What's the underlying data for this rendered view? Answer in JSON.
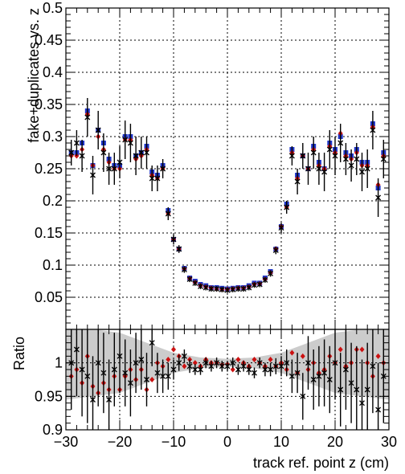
{
  "chart_data": [
    {
      "panel": "main",
      "type": "scatter",
      "ylabel": "fake+duplicates vs. z",
      "xlim": [
        -30,
        30
      ],
      "ylim": [
        0,
        0.5
      ],
      "yticks": [
        "0.05",
        "0.1",
        "0.15",
        "0.2",
        "0.25",
        "0.3",
        "0.35",
        "0.4",
        "0.45",
        "0.5"
      ],
      "grid": true,
      "x": [
        -29,
        -28,
        -27,
        -26,
        -25,
        -24,
        -23,
        -22,
        -21,
        -20,
        -19,
        -18,
        -17,
        -16,
        -15,
        -14,
        -13,
        -12,
        -11,
        -10,
        -9,
        -8,
        -7,
        -6,
        -5,
        -4,
        -3,
        -2,
        -1,
        0,
        1,
        2,
        3,
        4,
        5,
        6,
        7,
        8,
        9,
        10,
        11,
        12,
        13,
        14,
        15,
        16,
        17,
        18,
        19,
        20,
        21,
        22,
        23,
        24,
        25,
        26,
        27,
        28,
        29
      ],
      "series": [
        {
          "color": "#1f35c8",
          "marker": "square",
          "values": [
            0.275,
            0.275,
            0.29,
            0.34,
            0.255,
            0.31,
            0.29,
            0.265,
            0.255,
            0.255,
            0.3,
            0.3,
            0.27,
            0.275,
            0.285,
            0.245,
            0.24,
            0.255,
            0.185,
            0.14,
            0.125,
            0.095,
            0.08,
            0.075,
            0.07,
            0.068,
            0.065,
            0.065,
            0.064,
            0.063,
            0.064,
            0.065,
            0.065,
            0.068,
            0.072,
            0.072,
            0.08,
            0.09,
            0.125,
            0.16,
            0.195,
            0.28,
            0.24,
            0.27,
            0.25,
            0.285,
            0.26,
            0.25,
            0.29,
            0.28,
            0.3,
            0.275,
            0.27,
            0.28,
            0.26,
            0.26,
            0.32,
            0.22,
            0.275
          ]
        },
        {
          "color": "#cc1111",
          "marker": "diamond",
          "values": [
            0.27,
            0.27,
            0.28,
            0.335,
            0.255,
            0.3,
            0.28,
            0.26,
            0.25,
            0.25,
            0.295,
            0.295,
            0.265,
            0.27,
            0.28,
            0.24,
            0.235,
            0.25,
            0.18,
            0.14,
            0.125,
            0.094,
            0.079,
            0.073,
            0.068,
            0.066,
            0.064,
            0.063,
            0.062,
            0.062,
            0.063,
            0.064,
            0.064,
            0.066,
            0.07,
            0.071,
            0.078,
            0.088,
            0.125,
            0.16,
            0.19,
            0.275,
            0.235,
            0.27,
            0.25,
            0.28,
            0.255,
            0.25,
            0.285,
            0.275,
            0.305,
            0.27,
            0.265,
            0.275,
            0.255,
            0.255,
            0.315,
            0.225,
            0.27
          ]
        },
        {
          "color": "#000000",
          "marker": "star",
          "values": [
            0.275,
            0.29,
            0.27,
            0.33,
            0.24,
            0.31,
            0.275,
            0.25,
            0.25,
            0.26,
            0.295,
            0.29,
            0.27,
            0.275,
            0.275,
            0.235,
            0.235,
            0.25,
            0.18,
            0.14,
            0.125,
            0.093,
            0.078,
            0.072,
            0.067,
            0.065,
            0.063,
            0.063,
            0.062,
            0.061,
            0.062,
            0.063,
            0.063,
            0.065,
            0.069,
            0.07,
            0.077,
            0.087,
            0.123,
            0.158,
            0.19,
            0.27,
            0.23,
            0.27,
            0.25,
            0.275,
            0.25,
            0.245,
            0.28,
            0.27,
            0.29,
            0.265,
            0.255,
            0.265,
            0.245,
            0.25,
            0.31,
            0.205,
            0.265
          ]
        },
        {
          "name": "error",
          "values": [
            0.02,
            0.02,
            0.025,
            0.03,
            0.03,
            0.03,
            0.03,
            0.025,
            0.025,
            0.025,
            0.03,
            0.03,
            0.03,
            0.025,
            0.025,
            0.02,
            0.02,
            0.015,
            0.01,
            0.008,
            0.006,
            0.005,
            0.004,
            0.003,
            0.003,
            0.003,
            0.003,
            0.003,
            0.003,
            0.003,
            0.003,
            0.003,
            0.003,
            0.003,
            0.003,
            0.003,
            0.004,
            0.005,
            0.006,
            0.008,
            0.01,
            0.015,
            0.02,
            0.02,
            0.025,
            0.025,
            0.025,
            0.03,
            0.03,
            0.03,
            0.03,
            0.025,
            0.025,
            0.025,
            0.03,
            0.03,
            0.03,
            0.03,
            0.03
          ]
        }
      ]
    },
    {
      "panel": "ratio",
      "type": "scatter",
      "ylabel": "Ratio",
      "xlabel": "track ref. point z (cm)",
      "xlim": [
        -30,
        30
      ],
      "ylim": [
        0.9,
        1.05
      ],
      "yticks": [
        "0.9",
        "0.95",
        "1"
      ],
      "xticks": [
        "−30",
        "−20",
        "−10",
        "0",
        "10",
        "20",
        "30"
      ],
      "grid": true,
      "band": {
        "color": "#cccccc",
        "x": [
          -30,
          -25,
          -20,
          -15,
          -10,
          -5,
          0,
          5,
          10,
          15,
          20,
          25,
          30
        ],
        "halfwidth": [
          0.055,
          0.05,
          0.045,
          0.03,
          0.015,
          0.008,
          0.006,
          0.008,
          0.015,
          0.03,
          0.045,
          0.05,
          0.055
        ]
      },
      "series": [
        {
          "color": "#cc1111",
          "marker": "diamond",
          "values": [
            0.98,
            0.99,
            0.97,
            1.01,
            0.965,
            0.955,
            0.97,
            0.96,
            0.98,
            0.96,
            0.98,
            0.99,
            0.975,
            0.99,
            0.96,
            0.975,
            1.0,
            0.995,
            1.005,
            1.02,
            1.01,
            0.995,
            1.005,
            1.0,
            0.995,
            1.005,
            1.0,
            1.0,
            0.997,
            0.998,
            0.99,
            1.005,
            1.0,
            0.995,
            1.005,
            1.0,
            0.995,
            1.005,
            0.995,
            1.0,
            0.99,
            1.015,
            0.985,
            1.01,
            0.99,
            1.0,
            0.985,
            0.99,
            1.01,
            1.0,
            1.02,
            0.995,
            1.0,
            1.02,
            1.02,
            1.0,
            0.98,
            1.01,
            1.0
          ]
        },
        {
          "color": "#000000",
          "marker": "star",
          "values": [
            1.0,
            1.02,
            0.99,
            0.98,
            0.945,
            1.0,
            0.985,
            0.945,
            0.99,
            1.01,
            0.985,
            0.97,
            1.0,
            1.005,
            0.975,
            1.03,
            0.985,
            0.98,
            0.98,
            0.99,
            1.0,
            1.01,
            0.995,
            0.99,
            0.99,
            1.0,
            0.995,
            1.0,
            0.995,
            0.995,
            1.0,
            0.99,
            0.995,
            0.99,
            0.985,
            1.0,
            0.99,
            0.99,
            0.995,
            0.995,
            1.0,
            0.98,
            0.985,
            0.95,
            1.0,
            0.975,
            0.98,
            0.985,
            0.975,
            1.0,
            0.96,
            0.99,
            0.97,
            0.96,
            0.94,
            0.96,
            0.995,
            0.93,
            0.98
          ]
        },
        {
          "name": "error",
          "values": [
            0.07,
            0.07,
            0.07,
            0.07,
            0.065,
            0.065,
            0.06,
            0.06,
            0.055,
            0.055,
            0.05,
            0.05,
            0.045,
            0.045,
            0.04,
            0.035,
            0.03,
            0.025,
            0.02,
            0.015,
            0.012,
            0.01,
            0.01,
            0.008,
            0.008,
            0.008,
            0.008,
            0.008,
            0.008,
            0.008,
            0.008,
            0.008,
            0.008,
            0.008,
            0.008,
            0.008,
            0.01,
            0.01,
            0.012,
            0.015,
            0.02,
            0.025,
            0.03,
            0.035,
            0.04,
            0.045,
            0.045,
            0.05,
            0.05,
            0.055,
            0.055,
            0.06,
            0.06,
            0.065,
            0.065,
            0.07,
            0.07,
            0.07,
            0.07
          ]
        }
      ]
    }
  ]
}
